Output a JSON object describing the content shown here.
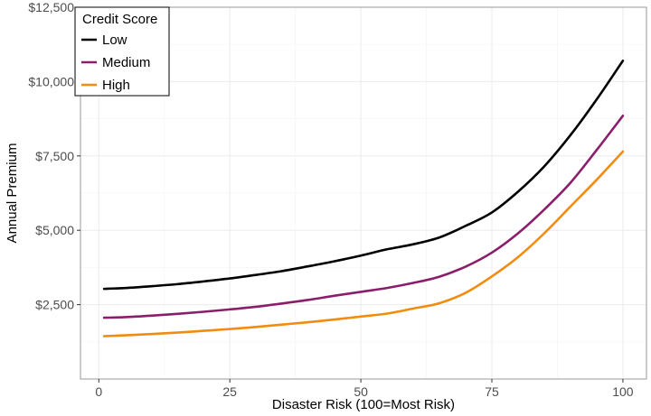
{
  "chart_data": {
    "type": "line",
    "xlabel": "Disaster Risk (100=Most Risk)",
    "ylabel": "Annual Premium",
    "xlim": [
      -3.5,
      104.5
    ],
    "ylim": [
      0,
      12500
    ],
    "x_ticks": [
      0,
      25,
      50,
      75,
      100
    ],
    "x_tick_labels": [
      "0",
      "25",
      "50",
      "75",
      "100"
    ],
    "y_ticks": [
      2500,
      5000,
      7500,
      10000,
      12500
    ],
    "y_tick_labels": [
      "$2,500",
      "$5,000",
      "$7,500",
      "$10,000",
      "$12,500"
    ],
    "grid": true,
    "legend": {
      "title": "Credit Score",
      "placement": "top-left"
    },
    "series": [
      {
        "name": "Low",
        "color": "#000000",
        "x": [
          1,
          5,
          10,
          15,
          20,
          25,
          30,
          35,
          40,
          45,
          50,
          55,
          60,
          65,
          70,
          75,
          80,
          85,
          90,
          95,
          100
        ],
        "values": [
          3030,
          3060,
          3120,
          3190,
          3280,
          3380,
          3500,
          3630,
          3790,
          3960,
          4150,
          4360,
          4530,
          4760,
          5150,
          5600,
          6300,
          7150,
          8200,
          9400,
          10700
        ]
      },
      {
        "name": "Medium",
        "color": "#8b1e6b",
        "x": [
          1,
          5,
          10,
          15,
          20,
          25,
          30,
          35,
          40,
          45,
          50,
          55,
          60,
          65,
          70,
          75,
          80,
          85,
          90,
          95,
          100
        ],
        "values": [
          2060,
          2080,
          2130,
          2190,
          2260,
          2340,
          2430,
          2540,
          2660,
          2800,
          2930,
          3060,
          3230,
          3440,
          3780,
          4250,
          4900,
          5700,
          6600,
          7700,
          8850
        ]
      },
      {
        "name": "High",
        "color": "#f28c0f",
        "x": [
          1,
          5,
          10,
          15,
          20,
          25,
          30,
          35,
          40,
          45,
          50,
          55,
          60,
          65,
          70,
          75,
          80,
          85,
          90,
          95,
          100
        ],
        "values": [
          1440,
          1470,
          1510,
          1560,
          1620,
          1680,
          1750,
          1830,
          1910,
          2000,
          2100,
          2200,
          2370,
          2550,
          2900,
          3450,
          4100,
          4900,
          5800,
          6700,
          7650
        ]
      }
    ]
  }
}
